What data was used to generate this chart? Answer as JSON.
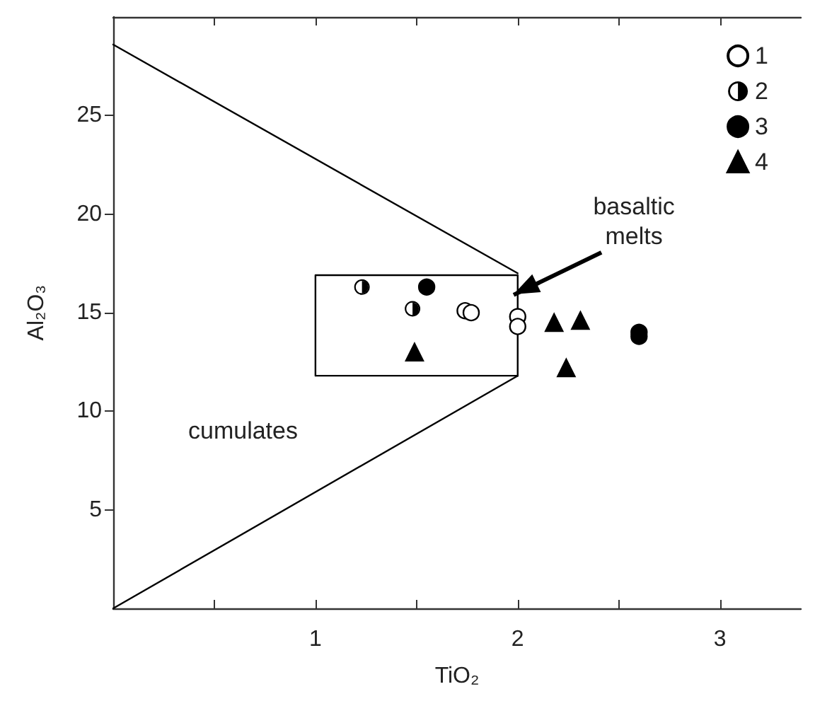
{
  "chart_data": {
    "type": "scatter",
    "xlabel": "TiO₂",
    "ylabel": "Al₂O₃",
    "xlim": [
      0,
      3.4
    ],
    "ylim": [
      0,
      30
    ],
    "xticks": [
      {
        "value": 0.5,
        "label": null
      },
      1,
      {
        "value": 1.5,
        "label": null
      },
      2,
      {
        "value": 2.5,
        "label": null
      },
      3
    ],
    "yticks": [
      5,
      10,
      15,
      20,
      25
    ],
    "grid": false,
    "legend": "top right",
    "annotations": [
      "cumulates",
      {
        "text": "basaltic melts",
        "x": 1.98,
        "y": 15.9
      }
    ],
    "series": [
      {
        "name": "1",
        "color": "#ffffff",
        "marker": "circle",
        "x": [
          1.74,
          1.77,
          2.0,
          2.0
        ],
        "values": [
          15.1,
          15.0,
          14.8,
          14.3
        ]
      },
      {
        "name": "2",
        "color": "#000000",
        "marker": "circle",
        "x": [
          1.23,
          1.48
        ],
        "values": [
          16.3,
          15.2
        ]
      },
      {
        "name": "3",
        "color": "#000000",
        "marker": "circle",
        "x": [
          1.55,
          2.6,
          2.6
        ],
        "values": [
          16.3,
          14.0,
          13.8
        ]
      },
      {
        "name": "4",
        "color": "#000000",
        "marker": "triangle",
        "x": [
          1.49,
          2.18,
          2.31,
          2.24
        ],
        "values": [
          13.0,
          14.5,
          14.6,
          12.2
        ]
      },
      {
        "type": "line",
        "color": "#000000",
        "marker": "none",
        "x": [
          0,
          2
        ],
        "values": [
          28.6,
          17.0
        ]
      },
      {
        "type": "line",
        "color": "#000000",
        "marker": "none",
        "x": [
          0,
          2
        ],
        "values": [
          0,
          11.8
        ]
      },
      {
        "type": "line",
        "color": "#000000",
        "marker": "none",
        "x": [
          2,
          1,
          1,
          2
        ],
        "values": [
          16.9,
          16.9,
          11.8,
          11.8
        ]
      },
      {
        "type": "line",
        "color": "#000000",
        "marker": "none",
        "x": [
          2,
          2
        ],
        "values": [
          11.8,
          16.9
        ]
      }
    ]
  }
}
